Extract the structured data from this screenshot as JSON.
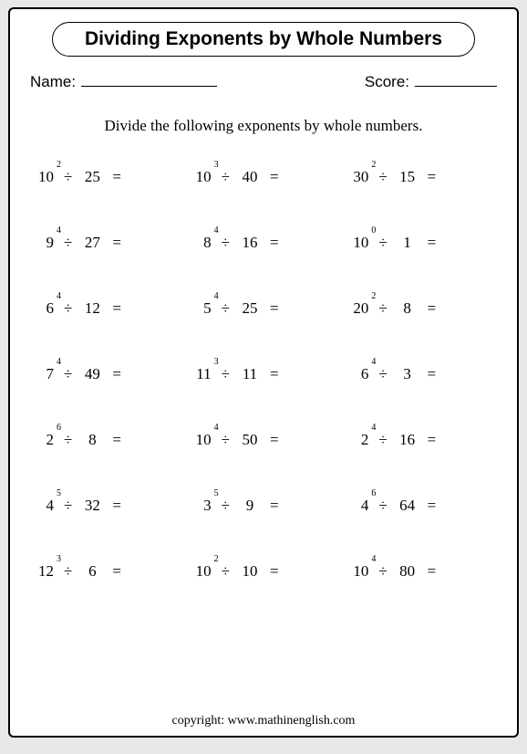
{
  "title": "Dividing Exponents by Whole Numbers",
  "labels": {
    "name": "Name:",
    "score": "Score:"
  },
  "instruction": "Divide the following exponents by whole numbers.",
  "division_symbol": "÷",
  "equals_symbol": "=",
  "problems": [
    {
      "base": "10",
      "exp": "2",
      "divisor": "25"
    },
    {
      "base": "10",
      "exp": "3",
      "divisor": "40"
    },
    {
      "base": "30",
      "exp": "2",
      "divisor": "15"
    },
    {
      "base": "9",
      "exp": "4",
      "divisor": "27"
    },
    {
      "base": "8",
      "exp": "4",
      "divisor": "16"
    },
    {
      "base": "10",
      "exp": "0",
      "divisor": "1"
    },
    {
      "base": "6",
      "exp": "4",
      "divisor": "12"
    },
    {
      "base": "5",
      "exp": "4",
      "divisor": "25"
    },
    {
      "base": "20",
      "exp": "2",
      "divisor": "8"
    },
    {
      "base": "7",
      "exp": "4",
      "divisor": "49"
    },
    {
      "base": "11",
      "exp": "3",
      "divisor": "11"
    },
    {
      "base": "6",
      "exp": "4",
      "divisor": "3"
    },
    {
      "base": "2",
      "exp": "6",
      "divisor": "8"
    },
    {
      "base": "10",
      "exp": "4",
      "divisor": "50"
    },
    {
      "base": "2",
      "exp": "4",
      "divisor": "16"
    },
    {
      "base": "4",
      "exp": "5",
      "divisor": "32"
    },
    {
      "base": "3",
      "exp": "5",
      "divisor": "9"
    },
    {
      "base": "4",
      "exp": "6",
      "divisor": "64"
    },
    {
      "base": "12",
      "exp": "3",
      "divisor": "6"
    },
    {
      "base": "10",
      "exp": "2",
      "divisor": "10"
    },
    {
      "base": "10",
      "exp": "4",
      "divisor": "80"
    }
  ],
  "copyright": "copyright:   www.mathinenglish.com",
  "style": {
    "page_bg": "#e8e8e8",
    "sheet_bg": "#ffffff",
    "border_color": "#000000",
    "text_color": "#000000",
    "title_fontsize": 21,
    "body_fontsize": 17,
    "exp_fontsize": 10,
    "grid_cols": 3,
    "grid_rows": 7,
    "row_gap": 52
  }
}
